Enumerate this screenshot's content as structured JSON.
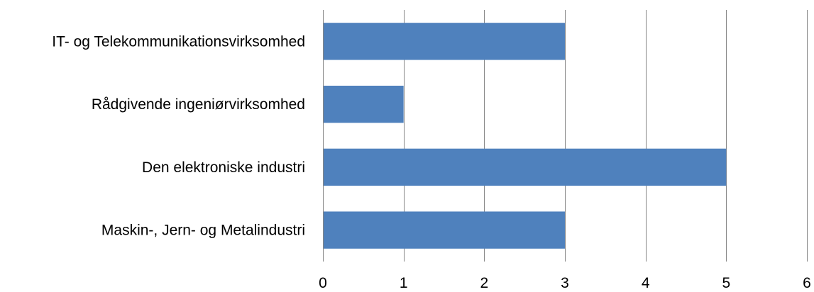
{
  "chart_data": {
    "type": "bar",
    "orientation": "horizontal",
    "categories": [
      "IT- og Telekommunikationsvirksomhed",
      "Rådgivende ingeniørvirksomhed",
      "Den elektroniske industri",
      "Maskin-, Jern- og Metalindustri"
    ],
    "values": [
      3,
      1,
      5,
      3
    ],
    "xlim": [
      0,
      6
    ],
    "xticks": [
      "0",
      "1",
      "2",
      "3",
      "4",
      "5",
      "6"
    ],
    "title": "",
    "xlabel": "",
    "ylabel": "",
    "grid": "vertical",
    "legend": "none",
    "bar_color": "#4f81bd",
    "grid_color": "#868686"
  }
}
